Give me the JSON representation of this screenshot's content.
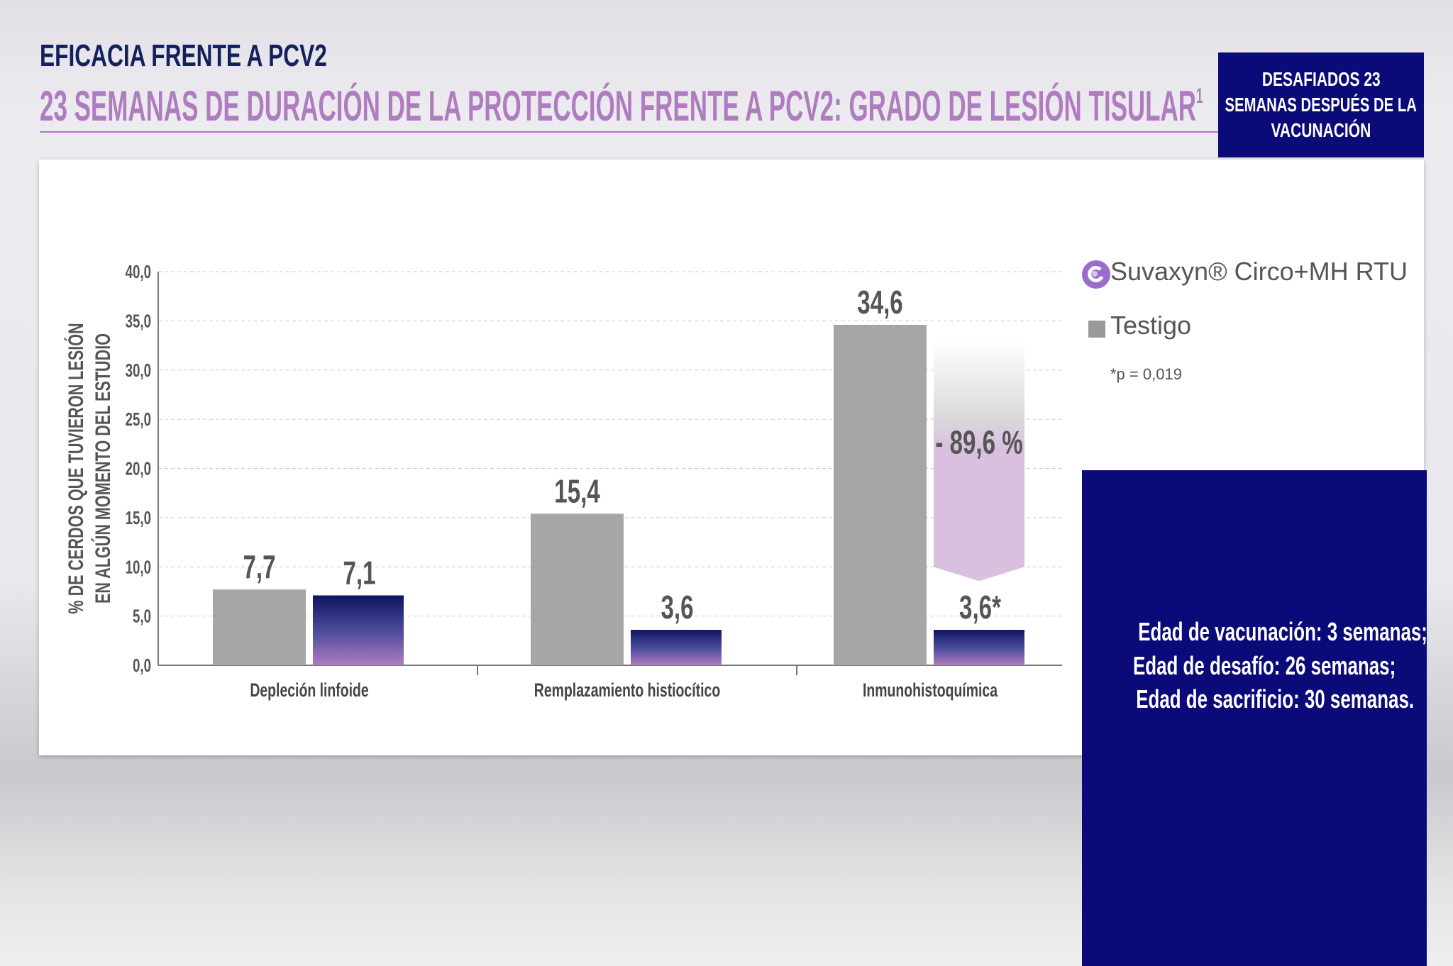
{
  "header": {
    "kicker": "EFICACIA FRENTE A PCV2",
    "title": "23 SEMANAS DE DURACIÓN DE LA PROTECCIÓN FRENTE A PCV2: GRADO DE LESIÓN TISULAR",
    "title_sup": "1"
  },
  "top_box": {
    "lines": [
      "DESAFIADOS 23",
      "SEMANAS DESPUÉS DE LA",
      "VACUNACIÓN"
    ]
  },
  "note_box": {
    "lines": [
      "Edad de vacunación: 3 semanas;",
      "Edad de desafío: 26 semanas;",
      "Edad de sacrificio: 30 semanas."
    ]
  },
  "legend": {
    "items": [
      {
        "label": "Suvaxyn® Circo+MH RTU",
        "icon": "suvaxyn-logo-icon"
      },
      {
        "label": "Testigo",
        "color": "#a6a6a6"
      }
    ],
    "footnote": "*p = 0,019"
  },
  "chart_data": {
    "type": "bar",
    "ylabel_lines": [
      "% DE CERDOS QUE TUVIERON LESIÓN",
      "EN ALGÚN MOMENTO DEL ESTUDIO"
    ],
    "ylim": [
      0,
      40
    ],
    "yticks": [
      "0,0",
      "5,0",
      "10,0",
      "15,0",
      "20,0",
      "25,0",
      "30,0",
      "35,0",
      "40,0"
    ],
    "grid": true,
    "legend_placement": "right",
    "categories": [
      "Depleción linfoide",
      "Remplazamiento histiocítico",
      "Inmunohistoquímica"
    ],
    "series": [
      {
        "name": "Testigo",
        "values": [
          7.7,
          15.4,
          34.6
        ],
        "labels": [
          "7,7",
          "15,4",
          "34,6"
        ],
        "color": "#a6a6a6"
      },
      {
        "name": "Suvaxyn® Circo+MH RTU",
        "values": [
          7.1,
          3.6,
          3.6
        ],
        "labels": [
          "7,1",
          "3,6",
          "3,6*"
        ],
        "color": "#3a3a8c"
      }
    ],
    "annotation": {
      "text": "- 89,6 %",
      "category": "Inmunohistoquímica",
      "color": "#d8c0de"
    }
  }
}
